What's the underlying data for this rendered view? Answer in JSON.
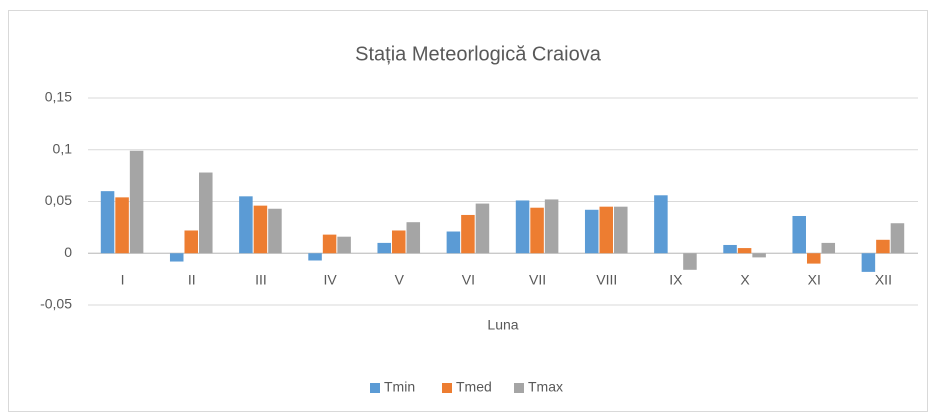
{
  "chart_data": {
    "type": "bar",
    "title": "Stația Meteorlogică Craiova",
    "x_label": "Luna",
    "categories": [
      "I",
      "II",
      "III",
      "IV",
      "V",
      "VI",
      "VII",
      "VIII",
      "IX",
      "X",
      "XI",
      "XII"
    ],
    "series": [
      {
        "name": "Tmin",
        "color": "#5b9bd5",
        "values": [
          0.06,
          -0.008,
          0.055,
          -0.007,
          0.01,
          0.021,
          0.051,
          0.042,
          0.056,
          0.008,
          0.036,
          -0.018
        ]
      },
      {
        "name": "Tmed",
        "color": "#ed7d31",
        "values": [
          0.054,
          0.022,
          0.046,
          0.018,
          0.022,
          0.037,
          0.044,
          0.045,
          0,
          0.005,
          -0.01,
          0.013
        ]
      },
      {
        "name": "Tmax",
        "color": "#a5a5a5",
        "values": [
          0.099,
          0.078,
          0.043,
          0.016,
          0.03,
          0.048,
          0.052,
          0.045,
          -0.016,
          -0.004,
          0.01,
          0.029
        ]
      }
    ],
    "ylim": [
      -0.05,
      0.15
    ],
    "yticks": [
      {
        "value": -0.05,
        "label": "-0,05"
      },
      0,
      {
        "value": 0.05,
        "label": "0,05"
      },
      {
        "value": 0.1,
        "label": "0,1"
      },
      {
        "value": 0.15,
        "label": "0,15"
      }
    ],
    "grid": true,
    "legend": "bottom"
  }
}
